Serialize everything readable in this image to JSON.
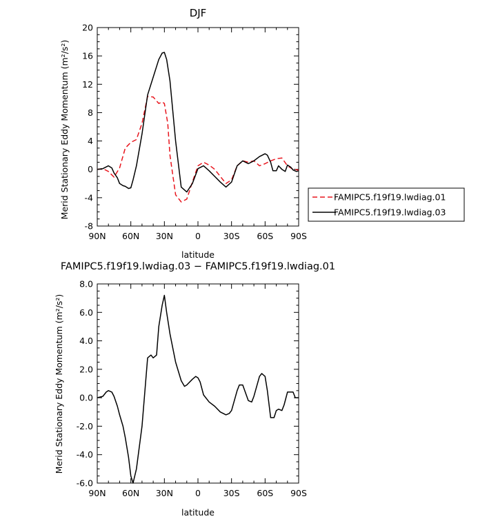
{
  "chart_data": [
    {
      "type": "line",
      "title": "DJF",
      "xlabel": "latitude",
      "ylabel": "Merid Stationary Eddy Momentum (m²/s²)",
      "xlim": [
        90,
        -90
      ],
      "ylim": [
        -8,
        20
      ],
      "x_ticks": [
        {
          "value": 90,
          "label": "90N"
        },
        {
          "value": 60,
          "label": "60N"
        },
        {
          "value": 30,
          "label": "30N"
        },
        {
          "value": 0,
          "label": "0"
        },
        {
          "value": -30,
          "label": "30S"
        },
        {
          "value": -60,
          "label": "60S"
        },
        {
          "value": -90,
          "label": "90S"
        }
      ],
      "y_ticks": [
        {
          "value": 20,
          "label": "20"
        },
        {
          "value": 16,
          "label": "16"
        },
        {
          "value": 12,
          "label": "12"
        },
        {
          "value": 8,
          "label": "8"
        },
        {
          "value": 4,
          "label": "4"
        },
        {
          "value": 0,
          "label": "0"
        },
        {
          "value": -4,
          "label": "-4"
        },
        {
          "value": -8,
          "label": "-8"
        }
      ],
      "legend": {
        "placement": "right",
        "entries": [
          {
            "label": "FAMIPC5.f19f19.lwdiag.01",
            "color": "#e8141c",
            "dash": "dashed"
          },
          {
            "label": "FAMIPC5.f19f19.lwdiag.03",
            "color": "#000000",
            "dash": "solid"
          }
        ]
      },
      "series": [
        {
          "name": "FAMIPC5.f19f19.lwdiag.01",
          "color": "#e8141c",
          "dash": "dashed",
          "x": [
            90,
            85,
            80,
            75,
            70,
            65,
            60,
            55,
            50,
            45,
            40,
            35,
            32,
            30,
            27,
            25,
            20,
            15,
            10,
            5,
            0,
            -5,
            -10,
            -15,
            -20,
            -25,
            -30,
            -35,
            -40,
            -45,
            -50,
            -55,
            -60,
            -65,
            -70,
            -75,
            -80,
            -85,
            -90
          ],
          "y": [
            0,
            0.1,
            -0.3,
            -1.1,
            0.2,
            3.0,
            3.8,
            4.2,
            6.5,
            10.3,
            10.2,
            9.3,
            9.5,
            9.3,
            6.5,
            2.0,
            -3.6,
            -4.6,
            -4.2,
            -1.8,
            0.5,
            1.0,
            0.6,
            0,
            -1.0,
            -2.0,
            -1.5,
            0.5,
            1.2,
            1.0,
            1.2,
            0.5,
            0.8,
            1.2,
            1.5,
            1.6,
            0.5,
            0,
            -0.1
          ]
        },
        {
          "name": "FAMIPC5.f19f19.lwdiag.03",
          "color": "#000000",
          "dash": "solid",
          "x": [
            90,
            85,
            80,
            77,
            75,
            72,
            70,
            67,
            65,
            62,
            60,
            58,
            55,
            50,
            45,
            40,
            35,
            32,
            30,
            28,
            25,
            20,
            15,
            10,
            5,
            0,
            -5,
            -10,
            -15,
            -20,
            -25,
            -30,
            -35,
            -40,
            -45,
            -50,
            -55,
            -60,
            -62,
            -65,
            -67,
            -70,
            -72,
            -75,
            -78,
            -80,
            -83,
            -85,
            -88,
            -90
          ],
          "y": [
            0,
            0.1,
            0.5,
            0.2,
            -0.5,
            -1.2,
            -2.0,
            -2.3,
            -2.4,
            -2.7,
            -2.6,
            -1.5,
            0.5,
            5.0,
            10.5,
            13.0,
            15.5,
            16.4,
            16.5,
            15.5,
            12.5,
            4.0,
            -2.5,
            -3.2,
            -2.0,
            0.1,
            0.5,
            -0.2,
            -1.0,
            -1.8,
            -2.5,
            -1.8,
            0.5,
            1.2,
            0.8,
            1.2,
            1.8,
            2.2,
            2.0,
            1.0,
            -0.2,
            -0.2,
            0.5,
            0,
            -0.3,
            0.6,
            0.3,
            -0.1,
            -0.3,
            -0.2
          ]
        }
      ]
    },
    {
      "type": "line",
      "title": "FAMIPC5.f19f19.lwdiag.03 − FAMIPC5.f19f19.lwdiag.01",
      "xlabel": "latitude",
      "ylabel": "Merid Stationary Eddy Momentum (m²/s²)",
      "xlim": [
        90,
        -90
      ],
      "ylim": [
        -6,
        8
      ],
      "x_ticks": [
        {
          "value": 90,
          "label": "90N"
        },
        {
          "value": 60,
          "label": "60N"
        },
        {
          "value": 30,
          "label": "30N"
        },
        {
          "value": 0,
          "label": "0"
        },
        {
          "value": -30,
          "label": "30S"
        },
        {
          "value": -60,
          "label": "60S"
        },
        {
          "value": -90,
          "label": "90S"
        }
      ],
      "y_ticks": [
        {
          "value": 8,
          "label": "8.0"
        },
        {
          "value": 6,
          "label": "6.0"
        },
        {
          "value": 4,
          "label": "4.0"
        },
        {
          "value": 2,
          "label": "2.0"
        },
        {
          "value": 0,
          "label": "0.0"
        },
        {
          "value": -2,
          "label": "-2.0"
        },
        {
          "value": -4,
          "label": "-4.0"
        },
        {
          "value": -6,
          "label": "-6.0"
        }
      ],
      "series": [
        {
          "color": "#000000",
          "dash": "solid",
          "x": [
            90,
            85,
            82,
            80,
            77,
            75,
            72,
            70,
            67,
            65,
            62,
            60,
            58,
            55,
            50,
            45,
            42,
            40,
            37,
            35,
            32,
            30,
            28,
            25,
            20,
            15,
            12,
            10,
            5,
            2,
            0,
            -2,
            -5,
            -10,
            -15,
            -20,
            -25,
            -28,
            -30,
            -35,
            -37,
            -40,
            -45,
            -48,
            -50,
            -55,
            -57,
            -60,
            -62,
            -65,
            -68,
            -70,
            -72,
            -75,
            -77,
            -80,
            -85,
            -87,
            -90
          ],
          "y": [
            0,
            0.1,
            0.4,
            0.5,
            0.4,
            0.1,
            -0.6,
            -1.2,
            -2.0,
            -2.8,
            -4.2,
            -5.5,
            -6.0,
            -5.0,
            -2.0,
            2.8,
            3.0,
            2.8,
            3.0,
            5.0,
            6.5,
            7.2,
            6.0,
            4.5,
            2.5,
            1.2,
            0.8,
            0.9,
            1.3,
            1.5,
            1.4,
            1.1,
            0.2,
            -0.3,
            -0.6,
            -1.0,
            -1.2,
            -1.1,
            -0.9,
            0.5,
            0.9,
            0.9,
            -0.2,
            -0.3,
            0.1,
            1.5,
            1.7,
            1.5,
            0.5,
            -1.4,
            -1.4,
            -0.9,
            -0.8,
            -0.9,
            -0.5,
            0.4,
            0.4,
            0,
            0
          ]
        }
      ]
    }
  ]
}
